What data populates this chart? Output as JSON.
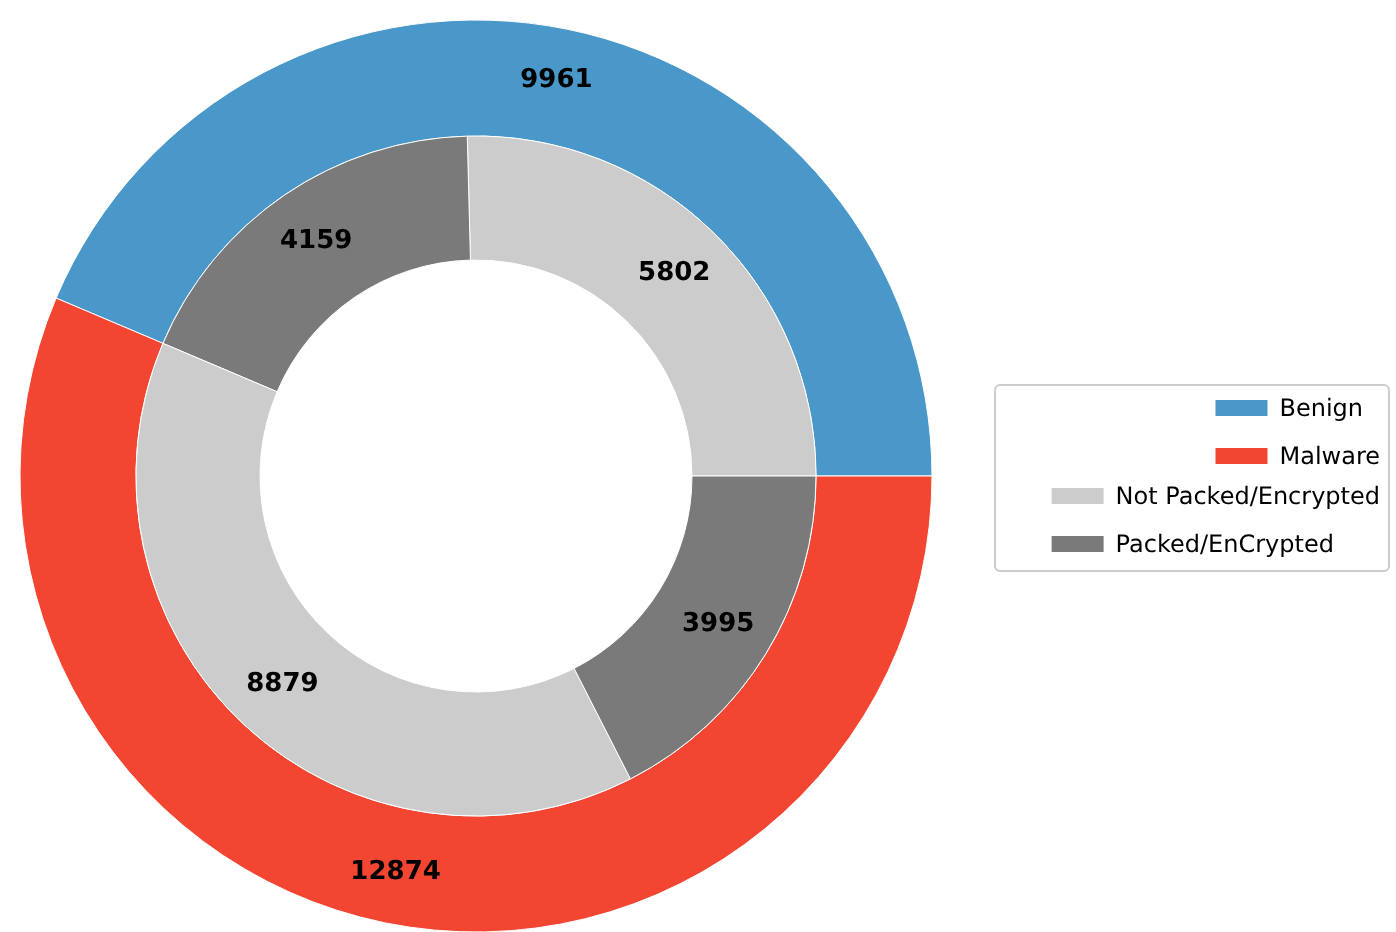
{
  "chart_data": [
    {
      "type": "donut",
      "data_labels": true,
      "legend": "right",
      "categories": [
        "Benign",
        "Malware"
      ],
      "values": [
        9961,
        12874
      ],
      "colors": [
        "#4a98c9",
        "#f24632"
      ]
    },
    {
      "type": "donut",
      "data_labels": true,
      "legend": "right",
      "categories": [
        "Not Packed/Encrypted",
        "Packed/EnCrypted",
        null,
        null
      ],
      "values": [
        5802,
        4159,
        8879,
        3995
      ],
      "colors": [
        "#cccccc",
        "#7a7a7a",
        "#cccccc",
        "#7a7a7a"
      ]
    }
  ]
}
